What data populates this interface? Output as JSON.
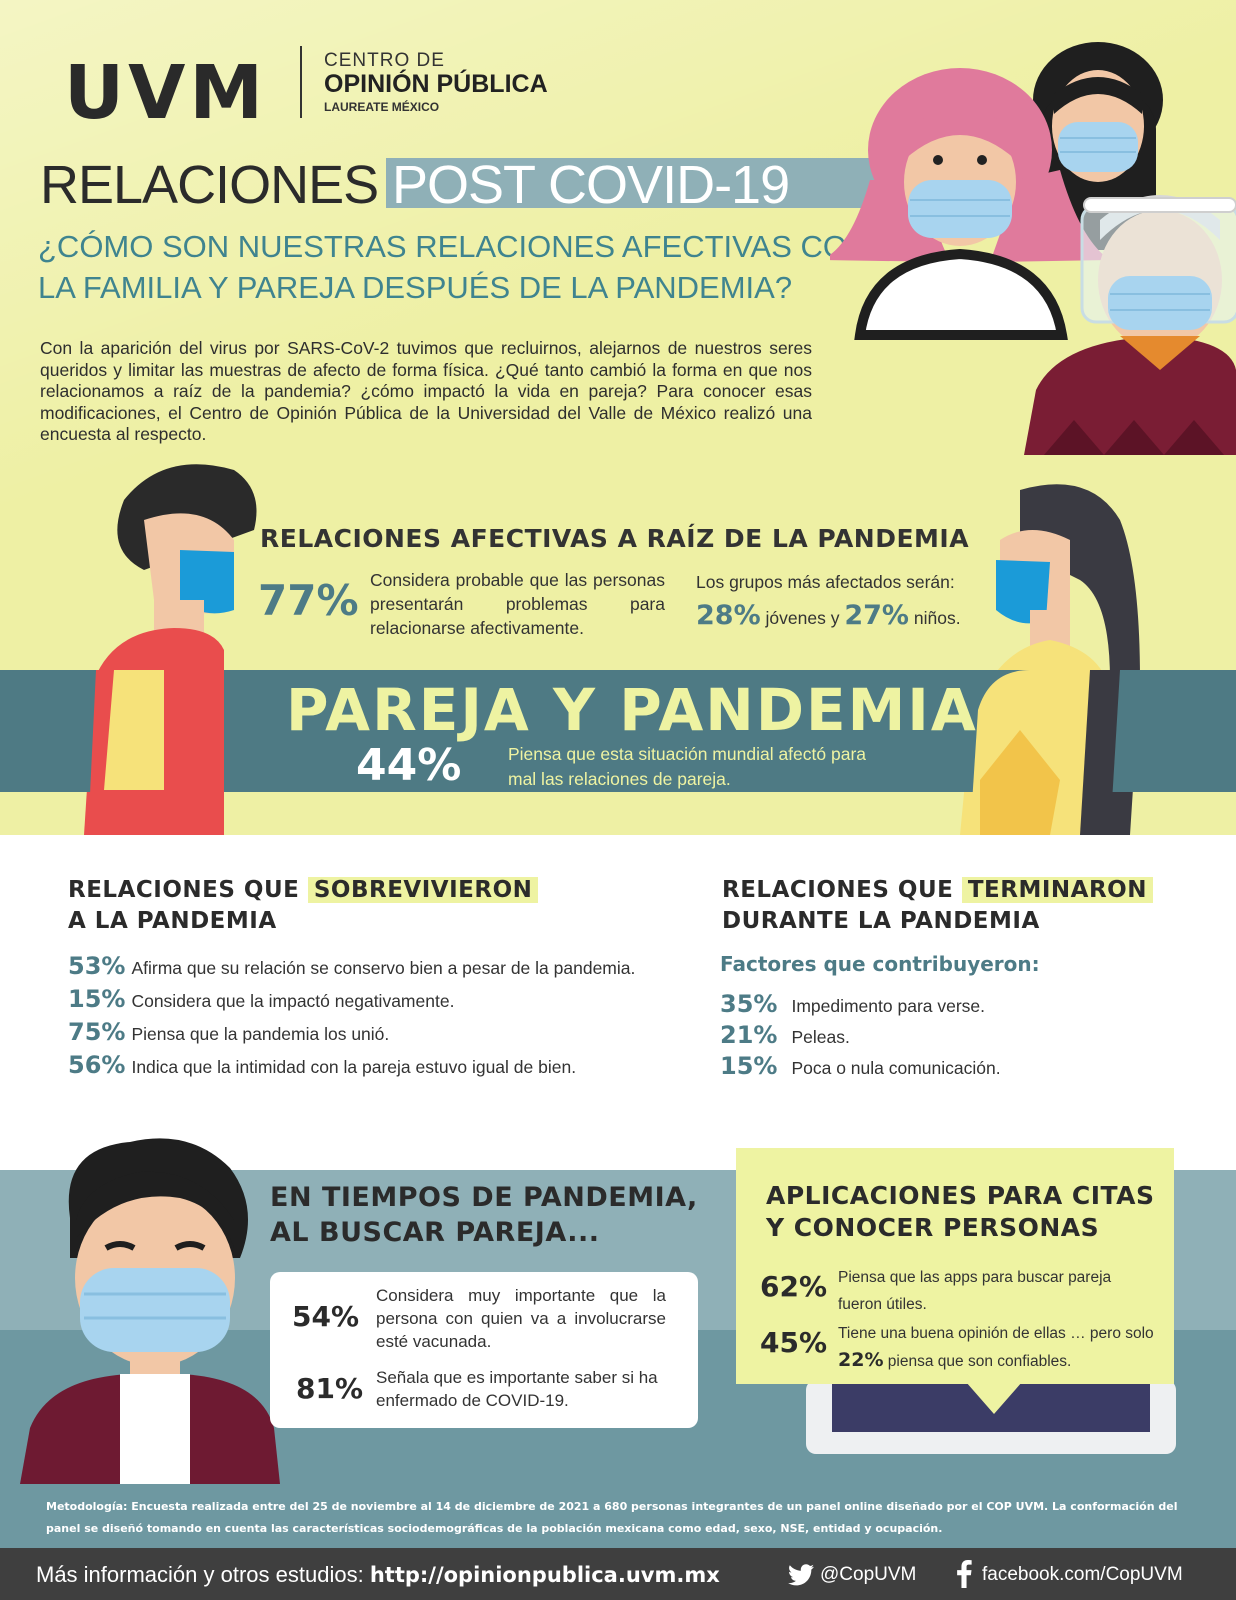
{
  "logo": {
    "brand": "UVM",
    "centro": "CENTRO DE",
    "opinion": "OPINIÓN PÚBLICA",
    "laureate": "LAUREATE MÉXICO"
  },
  "header": {
    "title_part1": "RELACIONES",
    "title_part2": "POST COVID-19",
    "subtitle": "¿CÓMO SON NUESTRAS RELACIONES AFECTIVAS CON LA FAMILIA Y PAREJA DESPUÉS DE LA PANDEMIA?",
    "intro": "Con la aparición del virus por SARS-CoV-2 tuvimos que recluirnos, alejarnos de nuestros seres queridos y limitar las muestras de afecto de forma física. ¿Qué tanto cambió la forma en que nos relacionamos a raíz de la pandemia? ¿cómo impactó la vida en pareja? Para conocer esas modificaciones, el Centro de Opinión Pública de la Universidad del Valle de México realizó una encuesta al respecto."
  },
  "afectivas": {
    "title": "RELACIONES AFECTIVAS A RAÍZ DE LA PANDEMIA",
    "stat_pct": "77%",
    "stat_text": "Considera probable que las personas presentarán problemas para relacionarse afectivamente.",
    "groups_label": "Los grupos más afectados serán:",
    "group1_pct": "28%",
    "group1_label": "jóvenes",
    "connector": "y",
    "group2_pct": "27%",
    "group2_label": "niños."
  },
  "pareja": {
    "title": "PAREJA Y PANDEMIA",
    "stat_pct": "44%",
    "stat_text": "Piensa que esta situación mundial afectó para mal las relaciones de pareja."
  },
  "sobrevivieron": {
    "title_pre": "RELACIONES QUE",
    "title_hl": "SOBREVIVIERON",
    "title_post": "A LA PANDEMIA",
    "items": [
      {
        "pct": "53%",
        "text": "Afirma que su relación se conservo bien a pesar de la pandemia."
      },
      {
        "pct": "15%",
        "text": "Considera que la impactó negativamente."
      },
      {
        "pct": "75%",
        "text": "Piensa que la pandemia los unió."
      },
      {
        "pct": "56%",
        "text": "Indica que la intimidad con la pareja estuvo igual de bien."
      }
    ]
  },
  "terminaron": {
    "title_pre": "RELACIONES QUE",
    "title_hl": "TERMINARON",
    "title_post": "DURANTE LA PANDEMIA",
    "factors_label": "Factores que contribuyeron:",
    "items": [
      {
        "pct": "35%",
        "text": "Impedimento para verse."
      },
      {
        "pct": "21%",
        "text": "Peleas."
      },
      {
        "pct": "15%",
        "text": "Poca o nula comunicación."
      }
    ]
  },
  "buscar": {
    "title_line1": "EN TIEMPOS DE PANDEMIA,",
    "title_line2": "AL BUSCAR PAREJA...",
    "stat1_pct": "54%",
    "stat1_text": "Considera muy importante que la persona con quien va a involucrarse esté vacunada.",
    "stat2_pct": "81%",
    "stat2_text": "Señala que es importante saber si ha enfermado de COVID-19."
  },
  "apps": {
    "title_line1": "APLICACIONES PARA CITAS",
    "title_line2": "Y CONOCER PERSONAS",
    "stat1_pct": "62%",
    "stat1_text": "Piensa que las apps para buscar pareja fueron útiles.",
    "stat2_pct": "45%",
    "stat2_text_a": "Tiene una buena opinión de ellas … pero solo",
    "stat2_inner_pct": "22%",
    "stat2_text_b": "piensa que son confiables."
  },
  "metodologia": "Metodología: Encuesta realizada entre del 25 de noviembre al 14 de diciembre de 2021 a 680 personas integrantes de un panel online diseñado por el COP UVM. La conformación del panel se diseñó tomando en cuenta las características sociodemográficas de la población mexicana como edad, sexo, NSE, entidad y ocupación.",
  "footer": {
    "info_label": "Más información y otros estudios:",
    "url": "http://opinionpublica.uvm.mx",
    "twitter_icon": "twitter-bird-icon",
    "twitter": "@CopUVM",
    "facebook_icon": "facebook-f-icon",
    "facebook": "facebook.com/CopUVM"
  },
  "colors": {
    "yellow_bg": "#eef0a4",
    "teal": "#4d7b86",
    "light_teal": "#8fb0b7",
    "highlight": "#eef3a2",
    "footer": "#3f3f3f"
  }
}
